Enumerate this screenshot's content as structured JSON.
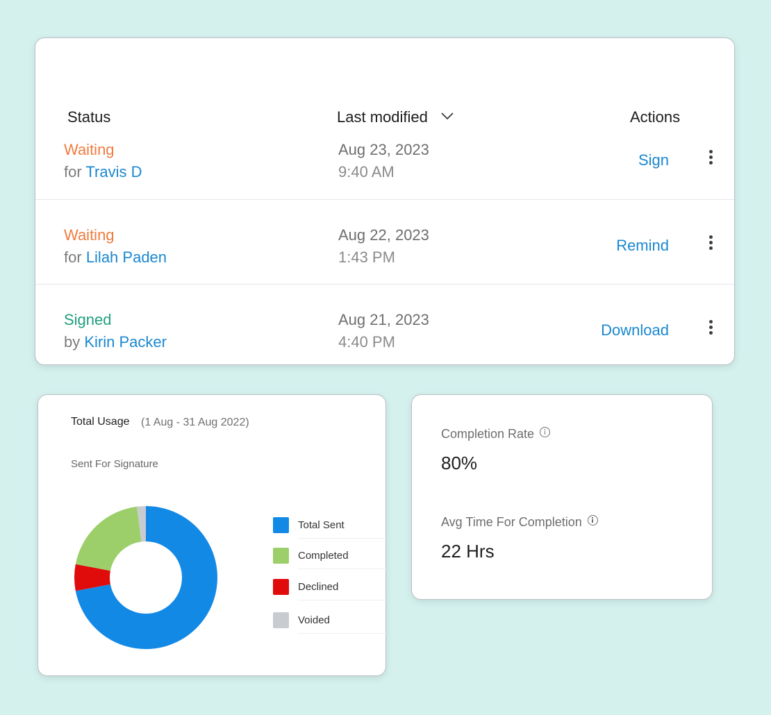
{
  "table": {
    "headers": {
      "status": "Status",
      "last_modified": "Last modified",
      "actions": "Actions"
    },
    "rows": [
      {
        "status": "Waiting",
        "status_color": "#f07b3f",
        "prep": "for",
        "person": "Travis D",
        "date": "Aug 23, 2023",
        "time": "9:40 AM",
        "action": "Sign"
      },
      {
        "status": "Waiting",
        "status_color": "#f07b3f",
        "prep": "for",
        "person": "Lilah Paden",
        "date": "Aug 22, 2023",
        "time": "1:43 PM",
        "action": "Remind"
      },
      {
        "status": "Signed",
        "status_color": "#1f9e7e",
        "prep": "by",
        "person": "Kirin Packer",
        "date": "Aug 21, 2023",
        "time": "4:40 PM",
        "action": "Download"
      }
    ]
  },
  "usage": {
    "title": "Total Usage",
    "range": "(1 Aug - 31 Aug 2022)",
    "subtitle": "Sent For Signature",
    "chart_data": {
      "type": "pie",
      "donut": true,
      "slices": [
        {
          "label": "Total Sent",
          "value": 72,
          "color": "#1389e6"
        },
        {
          "label": "Declined",
          "value": 6,
          "color": "#e00b0b"
        },
        {
          "label": "Completed",
          "value": 20,
          "color": "#9ccf6a"
        },
        {
          "label": "Voided",
          "value": 2,
          "color": "#c8ccd1"
        }
      ],
      "legend": [
        "Total Sent",
        "Completed",
        "Declined",
        "Voided"
      ],
      "legend_position": "right"
    }
  },
  "metrics": {
    "completion_label": "Completion Rate",
    "completion_value": "80%",
    "avg_label": "Avg Time For Completion",
    "avg_value": "22 Hrs"
  },
  "colors": {
    "background": "#d5f1ee",
    "link": "#1a87cf"
  },
  "icons": {
    "sort": "chevron-down-icon",
    "more": "kebab-menu-icon",
    "info": "info-icon"
  }
}
